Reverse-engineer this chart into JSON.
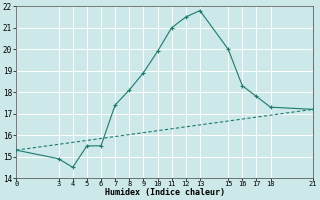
{
  "xlabel": "Humidex (Indice chaleur)",
  "bg_color": "#cce8e8",
  "grid_color": "#ffffff",
  "line_color": "#1a7a6e",
  "xlim": [
    0,
    21
  ],
  "ylim": [
    14,
    22
  ],
  "xticks": [
    0,
    3,
    4,
    5,
    6,
    7,
    8,
    9,
    10,
    11,
    12,
    13,
    15,
    16,
    17,
    18,
    21
  ],
  "yticks": [
    14,
    15,
    16,
    17,
    18,
    19,
    20,
    21,
    22
  ],
  "curve_x": [
    0,
    3,
    4,
    5,
    6,
    7,
    8,
    9,
    10,
    11,
    12,
    13,
    15,
    16,
    17,
    18,
    21
  ],
  "curve_y": [
    15.3,
    14.9,
    14.5,
    15.5,
    15.5,
    17.4,
    18.1,
    18.9,
    19.9,
    21.0,
    21.5,
    21.8,
    20.0,
    18.3,
    17.8,
    17.3,
    17.2
  ],
  "line_x": [
    0,
    21
  ],
  "line_y": [
    15.3,
    17.2
  ],
  "marker": "+"
}
